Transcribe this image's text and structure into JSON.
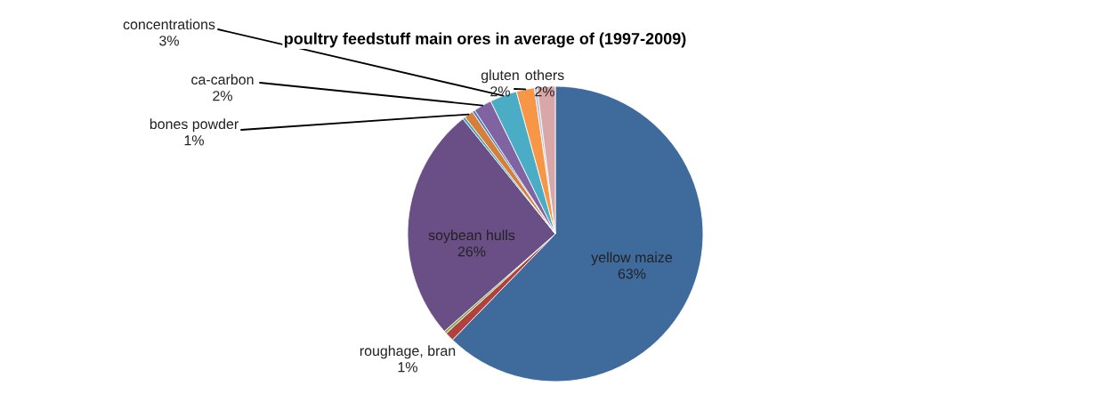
{
  "chart_data": {
    "type": "pie",
    "title": "poultry feedstuff main ores in average of (1997-2009)",
    "categories": [
      "yellow maize",
      "roughage, bran",
      null,
      "soybean hulls",
      null,
      "bones powder",
      null,
      "ca-carbon",
      "concentrations",
      "gluten",
      null,
      "others"
    ],
    "values": [
      63,
      1,
      0.3,
      26,
      0.3,
      1,
      0.3,
      2,
      3,
      2,
      0.3,
      2
    ],
    "value_labels": [
      "63%",
      "1%",
      null,
      "26%",
      null,
      "1%",
      null,
      "2%",
      "3%",
      "2%",
      null,
      "2%"
    ],
    "colors": [
      "#3f6a9c",
      "#b0413e",
      "#8cab4e",
      "#6a4f86",
      "#4aa3b5",
      "#d5803a",
      "#4a7ec0",
      "#8064a2",
      "#4bacc6",
      "#f79646",
      "#a9bfdc",
      "#d9a7a7"
    ]
  }
}
